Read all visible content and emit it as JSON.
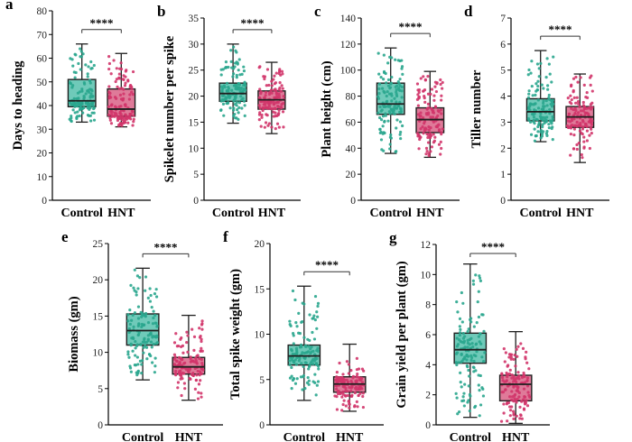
{
  "colors": {
    "control_fill": "#6fcab9",
    "control_dot": "#2aa68e",
    "hnt_fill": "#df7a99",
    "hnt_dot": "#d2356a",
    "outline": "#1f1f1f"
  },
  "chart_data": [
    {
      "type": "box",
      "panel": "a",
      "ylabel": "Days to heading",
      "ylim": [
        0,
        80
      ],
      "yticks": [
        0,
        10,
        20,
        30,
        40,
        50,
        60,
        70,
        80
      ],
      "categories": [
        "Control",
        "HNT"
      ],
      "significance": "****",
      "series": [
        {
          "name": "Control",
          "min": 33,
          "q1": 39.5,
          "median": 42,
          "q3": 51,
          "max": 66
        },
        {
          "name": "HNT",
          "min": 31,
          "q1": 35.5,
          "median": 38.5,
          "q3": 47,
          "max": 62
        }
      ]
    },
    {
      "type": "box",
      "panel": "b",
      "ylabel": "Spikelet number per spike",
      "ylim": [
        0,
        35
      ],
      "yticks": [
        0,
        5,
        10,
        15,
        20,
        25,
        30,
        35
      ],
      "categories": [
        "Control",
        "HNT"
      ],
      "significance": "****",
      "series": [
        {
          "name": "Control",
          "min": 14.8,
          "q1": 19,
          "median": 20.5,
          "q3": 22.5,
          "max": 30
        },
        {
          "name": "HNT",
          "min": 12.8,
          "q1": 17.5,
          "median": 19.3,
          "q3": 21,
          "max": 26.5
        }
      ]
    },
    {
      "type": "box",
      "panel": "c",
      "ylabel": "Plant height (cm)",
      "ylim": [
        0,
        140
      ],
      "yticks": [
        0,
        20,
        40,
        60,
        80,
        100,
        120,
        140
      ],
      "categories": [
        "Control",
        "HNT"
      ],
      "significance": "****",
      "series": [
        {
          "name": "Control",
          "min": 36,
          "q1": 66,
          "median": 74,
          "q3": 90,
          "max": 117
        },
        {
          "name": "HNT",
          "min": 33,
          "q1": 52,
          "median": 62,
          "q3": 71,
          "max": 99
        }
      ]
    },
    {
      "type": "box",
      "panel": "d",
      "ylabel": "Tiller number",
      "ylim": [
        0,
        7
      ],
      "yticks": [
        0,
        1,
        2,
        3,
        4,
        5,
        6,
        7
      ],
      "categories": [
        "Control",
        "HNT"
      ],
      "significance": "****",
      "series": [
        {
          "name": "Control",
          "min": 2.25,
          "q1": 3.05,
          "median": 3.4,
          "q3": 3.9,
          "max": 5.75
        },
        {
          "name": "HNT",
          "min": 1.45,
          "q1": 2.8,
          "median": 3.2,
          "q3": 3.6,
          "max": 4.85
        }
      ]
    },
    {
      "type": "box",
      "panel": "e",
      "ylabel": "Biomass (gm)",
      "ylim": [
        0,
        25
      ],
      "yticks": [
        0,
        5,
        10,
        15,
        20,
        25
      ],
      "categories": [
        "Control",
        "HNT"
      ],
      "significance": "****",
      "series": [
        {
          "name": "Control",
          "min": 6.2,
          "q1": 11,
          "median": 13,
          "q3": 15.3,
          "max": 21.6
        },
        {
          "name": "HNT",
          "min": 3.4,
          "q1": 7,
          "median": 8,
          "q3": 9.3,
          "max": 15.1
        }
      ]
    },
    {
      "type": "box",
      "panel": "f",
      "ylabel": "Total spike weight (gm)",
      "ylim": [
        0,
        20
      ],
      "yticks": [
        0,
        5,
        10,
        15,
        20
      ],
      "categories": [
        "Control",
        "HNT"
      ],
      "significance": "****",
      "series": [
        {
          "name": "Control",
          "min": 2.7,
          "q1": 6.6,
          "median": 7.6,
          "q3": 8.8,
          "max": 15.3
        },
        {
          "name": "HNT",
          "min": 1.5,
          "q1": 3.6,
          "median": 4.5,
          "q3": 5.3,
          "max": 8.9
        }
      ]
    },
    {
      "type": "box",
      "panel": "g",
      "ylabel": "Grain yield per plant (gm)",
      "ylim": [
        0,
        12
      ],
      "yticks": [
        0,
        2,
        4,
        6,
        8,
        10,
        12
      ],
      "categories": [
        "Control",
        "HNT"
      ],
      "significance": "****",
      "series": [
        {
          "name": "Control",
          "min": 0.5,
          "q1": 4.1,
          "median": 5,
          "q3": 6.1,
          "max": 10.7
        },
        {
          "name": "HNT",
          "min": 0.1,
          "q1": 1.6,
          "median": 2.7,
          "q3": 3.3,
          "max": 6.2
        }
      ]
    }
  ]
}
